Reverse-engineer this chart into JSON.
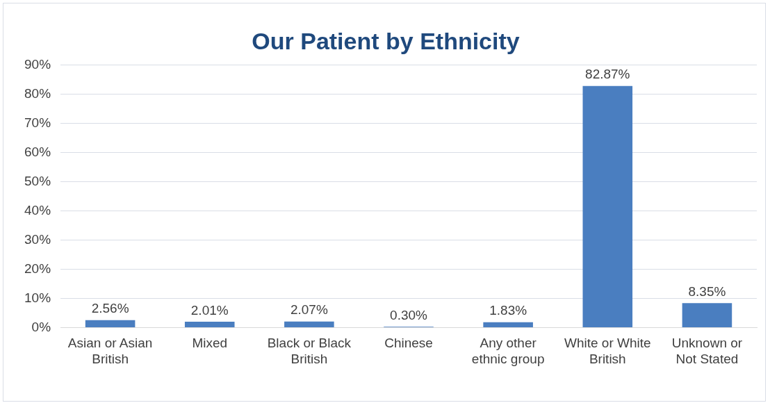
{
  "chart_data": {
    "type": "bar",
    "title": "Our Patient by Ethnicity",
    "categories": [
      "Asian or Asian British",
      "Mixed",
      "Black or Black British",
      "Chinese",
      "Any other ethnic group",
      "White or White British",
      "Unknown or Not Stated"
    ],
    "values": [
      2.56,
      2.01,
      2.07,
      0.3,
      1.83,
      82.87,
      8.35
    ],
    "value_labels": [
      "2.56%",
      "2.01%",
      "2.07%",
      "0.30%",
      "1.83%",
      "82.87%",
      "8.35%"
    ],
    "color": "#4a7ec0",
    "ylim": [
      0,
      90
    ],
    "yticks": [
      {
        "value": 0,
        "label": "0%"
      },
      {
        "value": 10,
        "label": "10%"
      },
      {
        "value": 20,
        "label": "20%"
      },
      {
        "value": 30,
        "label": "30%"
      },
      {
        "value": 40,
        "label": "40%"
      },
      {
        "value": 50,
        "label": "50%"
      },
      {
        "value": 60,
        "label": "60%"
      },
      {
        "value": 70,
        "label": "70%"
      },
      {
        "value": 80,
        "label": "80%"
      },
      {
        "value": 90,
        "label": "90%"
      }
    ],
    "grid": "y",
    "legend": false
  }
}
